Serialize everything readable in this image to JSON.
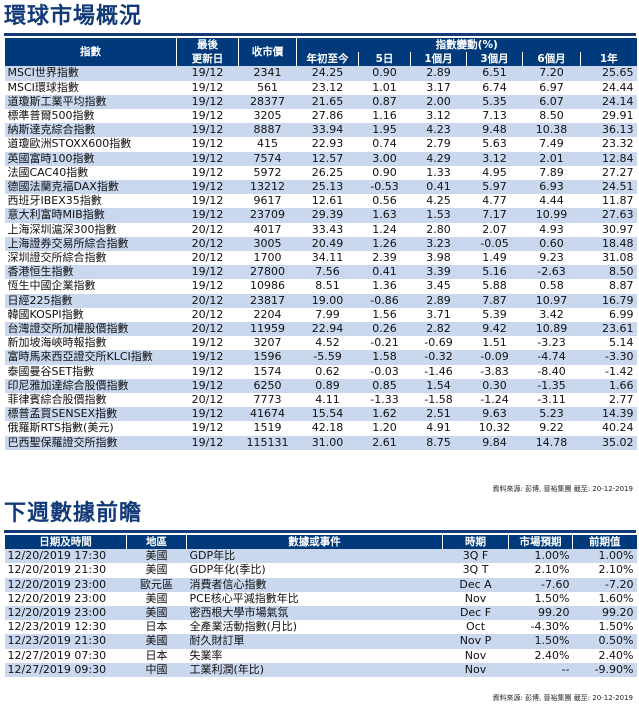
{
  "market": {
    "title": "環球市場概況",
    "headers": {
      "index": "指數",
      "latest": "最後",
      "updated": "更新日",
      "close": "收市價",
      "change": "指數變動(%)",
      "ytd": "年初至今",
      "d5": "5日",
      "m1": "1個月",
      "m3": "3個月",
      "m6": "6個月",
      "y1": "1年"
    },
    "rows": [
      {
        "name": "MSCI世界指數",
        "date": "19/12",
        "close": "2341",
        "ytd": "24.25",
        "d5": "0.90",
        "m1": "2.89",
        "m3": "6.51",
        "m6": "7.20",
        "y1": "25.65"
      },
      {
        "name": "MSCI環球指數",
        "date": "19/12",
        "close": "561",
        "ytd": "23.12",
        "d5": "1.01",
        "m1": "3.17",
        "m3": "6.74",
        "m6": "6.97",
        "y1": "24.44"
      },
      {
        "name": "道瓊斯工業平均指數",
        "date": "19/12",
        "close": "28377",
        "ytd": "21.65",
        "d5": "0.87",
        "m1": "2.00",
        "m3": "5.35",
        "m6": "6.07",
        "y1": "24.14"
      },
      {
        "name": "標準普爾500指數",
        "date": "19/12",
        "close": "3205",
        "ytd": "27.86",
        "d5": "1.16",
        "m1": "3.12",
        "m3": "7.13",
        "m6": "8.50",
        "y1": "29.91"
      },
      {
        "name": "納斯達克綜合指數",
        "date": "19/12",
        "close": "8887",
        "ytd": "33.94",
        "d5": "1.95",
        "m1": "4.23",
        "m3": "9.48",
        "m6": "10.38",
        "y1": "36.13"
      },
      {
        "name": "道瓊歐洲STOXX600指數",
        "date": "19/12",
        "close": "415",
        "ytd": "22.93",
        "d5": "0.74",
        "m1": "2.79",
        "m3": "5.63",
        "m6": "7.49",
        "y1": "23.32"
      },
      {
        "name": "英國富時100指數",
        "date": "19/12",
        "close": "7574",
        "ytd": "12.57",
        "d5": "3.00",
        "m1": "4.29",
        "m3": "3.12",
        "m6": "2.01",
        "y1": "12.84"
      },
      {
        "name": "法國CAC40指數",
        "date": "19/12",
        "close": "5972",
        "ytd": "26.25",
        "d5": "0.90",
        "m1": "1.33",
        "m3": "4.95",
        "m6": "7.89",
        "y1": "27.27"
      },
      {
        "name": "德國法蘭克福DAX指數",
        "date": "19/12",
        "close": "13212",
        "ytd": "25.13",
        "d5": "-0.53",
        "m1": "0.41",
        "m3": "5.97",
        "m6": "6.93",
        "y1": "24.51"
      },
      {
        "name": "西班牙IBEX35指數",
        "date": "19/12",
        "close": "9617",
        "ytd": "12.61",
        "d5": "0.56",
        "m1": "4.25",
        "m3": "4.77",
        "m6": "4.44",
        "y1": "11.87"
      },
      {
        "name": "意大利富時MIB指數",
        "date": "19/12",
        "close": "23709",
        "ytd": "29.39",
        "d5": "1.63",
        "m1": "1.53",
        "m3": "7.17",
        "m6": "10.99",
        "y1": "27.63"
      },
      {
        "name": "上海深圳滬深300指數",
        "date": "20/12",
        "close": "4017",
        "ytd": "33.43",
        "d5": "1.24",
        "m1": "2.80",
        "m3": "2.07",
        "m6": "4.93",
        "y1": "30.97"
      },
      {
        "name": "上海證券交易所綜合指數",
        "date": "20/12",
        "close": "3005",
        "ytd": "20.49",
        "d5": "1.26",
        "m1": "3.23",
        "m3": "-0.05",
        "m6": "0.60",
        "y1": "18.48"
      },
      {
        "name": "深圳證交所綜合指數",
        "date": "20/12",
        "close": "1700",
        "ytd": "34.11",
        "d5": "2.39",
        "m1": "3.98",
        "m3": "1.49",
        "m6": "9.23",
        "y1": "31.08"
      },
      {
        "name": "香港恒生指數",
        "date": "19/12",
        "close": "27800",
        "ytd": "7.56",
        "d5": "0.41",
        "m1": "3.39",
        "m3": "5.16",
        "m6": "-2.63",
        "y1": "8.50"
      },
      {
        "name": "恆生中國企業指數",
        "date": "19/12",
        "close": "10986",
        "ytd": "8.51",
        "d5": "1.36",
        "m1": "3.45",
        "m3": "5.88",
        "m6": "0.58",
        "y1": "8.87"
      },
      {
        "name": "日經225指數",
        "date": "20/12",
        "close": "23817",
        "ytd": "19.00",
        "d5": "-0.86",
        "m1": "2.89",
        "m3": "7.87",
        "m6": "10.97",
        "y1": "16.79"
      },
      {
        "name": "韓國KOSPI指數",
        "date": "20/12",
        "close": "2204",
        "ytd": "7.99",
        "d5": "1.56",
        "m1": "3.71",
        "m3": "5.39",
        "m6": "3.42",
        "y1": "6.99"
      },
      {
        "name": "台灣證交所加權股價指數",
        "date": "20/12",
        "close": "11959",
        "ytd": "22.94",
        "d5": "0.26",
        "m1": "2.82",
        "m3": "9.42",
        "m6": "10.89",
        "y1": "23.61"
      },
      {
        "name": "新加坡海峽時報指數",
        "date": "19/12",
        "close": "3207",
        "ytd": "4.52",
        "d5": "-0.21",
        "m1": "-0.69",
        "m3": "1.51",
        "m6": "-3.23",
        "y1": "5.14"
      },
      {
        "name": "富時馬來西亞證交所KLCI指數",
        "date": "19/12",
        "close": "1596",
        "ytd": "-5.59",
        "d5": "1.58",
        "m1": "-0.32",
        "m3": "-0.09",
        "m6": "-4.74",
        "y1": "-3.30"
      },
      {
        "name": "泰國曼谷SET指數",
        "date": "19/12",
        "close": "1574",
        "ytd": "0.62",
        "d5": "-0.03",
        "m1": "-1.46",
        "m3": "-3.83",
        "m6": "-8.40",
        "y1": "-1.42"
      },
      {
        "name": "印尼雅加達綜合股價指數",
        "date": "19/12",
        "close": "6250",
        "ytd": "0.89",
        "d5": "0.85",
        "m1": "1.54",
        "m3": "0.30",
        "m6": "-1.35",
        "y1": "1.66"
      },
      {
        "name": "菲律賓綜合股價指數",
        "date": "20/12",
        "close": "7773",
        "ytd": "4.11",
        "d5": "-1.33",
        "m1": "-1.58",
        "m3": "-1.24",
        "m6": "-3.11",
        "y1": "2.77"
      },
      {
        "name": "標普孟買SENSEX指數",
        "date": "19/12",
        "close": "41674",
        "ytd": "15.54",
        "d5": "1.62",
        "m1": "2.51",
        "m3": "9.63",
        "m6": "5.23",
        "y1": "14.39"
      },
      {
        "name": "俄羅斯RTS指數(美元)",
        "date": "19/12",
        "close": "1519",
        "ytd": "42.18",
        "d5": "1.20",
        "m1": "4.91",
        "m3": "10.32",
        "m6": "9.22",
        "y1": "40.24"
      },
      {
        "name": "巴西聖保羅證交所指數",
        "date": "19/12",
        "close": "115131",
        "ytd": "31.00",
        "d5": "2.61",
        "m1": "8.75",
        "m3": "9.84",
        "m6": "14.78",
        "y1": "35.02"
      }
    ],
    "source": "資料來源: 彭博, 晉裕集團 截至: 20-12-2019"
  },
  "calendar": {
    "title": "下週數據前瞻",
    "headers": {
      "datetime": "日期及時間",
      "region": "地區",
      "event": "數據或事件",
      "period": "時期",
      "forecast": "市場預期",
      "previous": "前期值"
    },
    "rows": [
      {
        "datetime": "12/20/2019 17:30",
        "region": "美國",
        "event": "GDP年比",
        "period": "3Q F",
        "forecast": "1.00%",
        "previous": "1.00%"
      },
      {
        "datetime": "12/20/2019 21:30",
        "region": "美國",
        "event": "GDP年化(季比)",
        "period": "3Q T",
        "forecast": "2.10%",
        "previous": "2.10%"
      },
      {
        "datetime": "12/20/2019 23:00",
        "region": "歐元區",
        "event": "消費者信心指數",
        "period": "Dec A",
        "forecast": "-7.60",
        "previous": "-7.20"
      },
      {
        "datetime": "12/20/2019 23:00",
        "region": "美國",
        "event": "PCE核心平減指數年比",
        "period": "Nov",
        "forecast": "1.50%",
        "previous": "1.60%"
      },
      {
        "datetime": "12/20/2019 23:00",
        "region": "美國",
        "event": "密西根大學市場氣氛",
        "period": "Dec F",
        "forecast": "99.20",
        "previous": "99.20"
      },
      {
        "datetime": "12/23/2019 12:30",
        "region": "日本",
        "event": "全產業活動指數(月比)",
        "period": "Oct",
        "forecast": "-4.30%",
        "previous": "1.50%"
      },
      {
        "datetime": "12/23/2019 21:30",
        "region": "美國",
        "event": "耐久財訂單",
        "period": "Nov P",
        "forecast": "1.50%",
        "previous": "0.50%"
      },
      {
        "datetime": "12/27/2019 07:30",
        "region": "日本",
        "event": "失業率",
        "period": "Nov",
        "forecast": "2.40%",
        "previous": "2.40%"
      },
      {
        "datetime": "12/27/2019 09:30",
        "region": "中國",
        "event": "工業利潤(年比)",
        "period": "Nov",
        "forecast": "--",
        "previous": "-9.90%"
      }
    ],
    "source": "資料來源: 彭博, 晉裕集團 截至: 20-12-2019"
  },
  "colors": {
    "navy": "#003a7a",
    "band": "#c9d8ee",
    "title": "#123a78"
  }
}
